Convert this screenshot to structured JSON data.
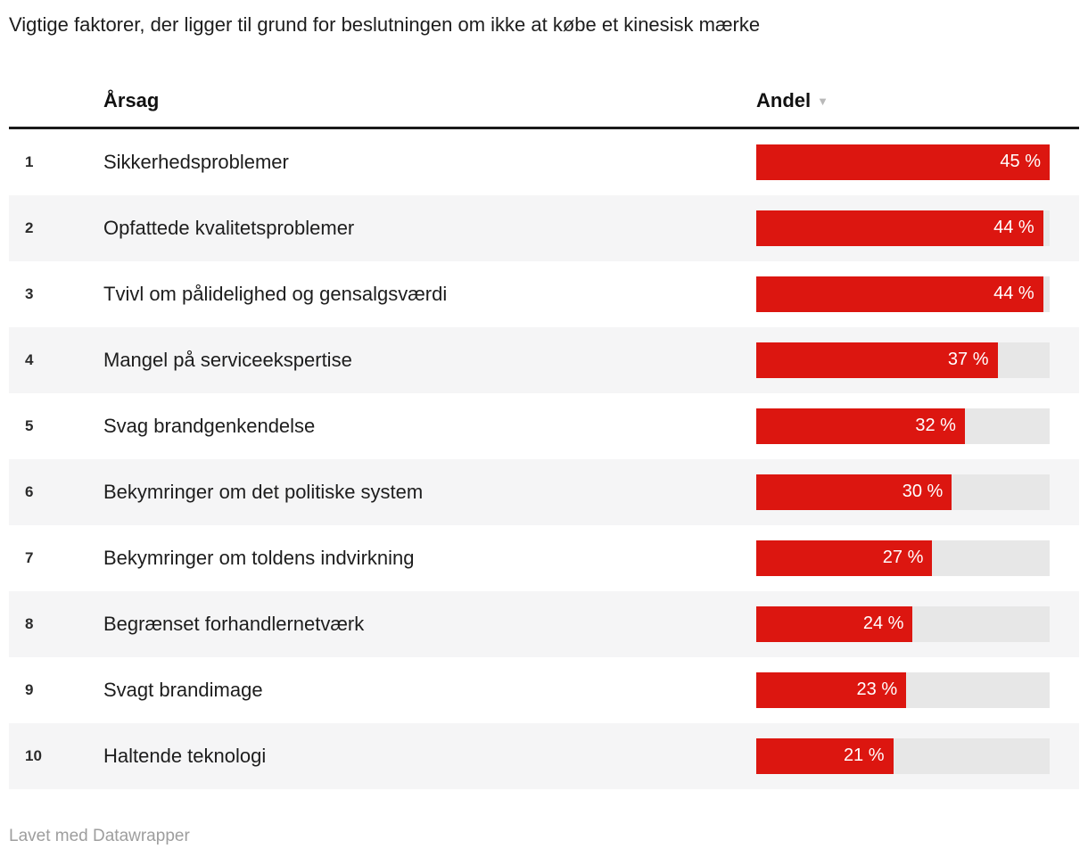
{
  "title": "Vigtige faktorer, der ligger til grund for beslutningen om ikke at købe et kinesisk mærke",
  "table": {
    "columns": {
      "reason": "Årsag",
      "share": "Andel"
    },
    "sort_icon": "▼",
    "rows": [
      {
        "rank": "1",
        "label": "Sikkerhedsproblemer",
        "value": 45,
        "display": "45 %"
      },
      {
        "rank": "2",
        "label": "Opfattede kvalitetsproblemer",
        "value": 44,
        "display": "44 %"
      },
      {
        "rank": "3",
        "label": "Tvivl om pålidelighed og gensalgsværdi",
        "value": 44,
        "display": "44 %"
      },
      {
        "rank": "4",
        "label": "Mangel på serviceekspertise",
        "value": 37,
        "display": "37 %"
      },
      {
        "rank": "5",
        "label": "Svag brandgenkendelse",
        "value": 32,
        "display": "32 %"
      },
      {
        "rank": "6",
        "label": "Bekymringer om det politiske system",
        "value": 30,
        "display": "30 %"
      },
      {
        "rank": "7",
        "label": "Bekymringer om toldens indvirkning",
        "value": 27,
        "display": "27 %"
      },
      {
        "rank": "8",
        "label": "Begrænset forhandlernetværk",
        "value": 24,
        "display": "24 %"
      },
      {
        "rank": "9",
        "label": "Svagt brandimage",
        "value": 23,
        "display": "23 %"
      },
      {
        "rank": "10",
        "label": "Haltende teknologi",
        "value": 21,
        "display": "21 %"
      }
    ]
  },
  "footer": {
    "credit": "Lavet med Datawrapper"
  },
  "colors": {
    "bar": "#dc1610",
    "track": "#e7e7e7",
    "row_alt": "#f5f5f6",
    "header_rule": "#1a1a1a",
    "sort_icon": "#b9b9b9",
    "value_text": "#ffffff",
    "footer_text": "#9e9e9e"
  },
  "chart_data": {
    "type": "bar",
    "orientation": "horizontal",
    "title": "Vigtige faktorer, der ligger til grund for beslutningen om ikke at købe et kinesisk mærke",
    "categories": [
      "Sikkerhedsproblemer",
      "Opfattede kvalitetsproblemer",
      "Tvivl om pålidelighed og gensalgsværdi",
      "Mangel på serviceekspertise",
      "Svag brandgenkendelse",
      "Bekymringer om det politiske system",
      "Bekymringer om toldens indvirkning",
      "Begrænset forhandlernetværk",
      "Svagt brandimage",
      "Haltende teknologi"
    ],
    "values": [
      45,
      44,
      44,
      37,
      32,
      30,
      27,
      24,
      23,
      21
    ],
    "value_suffix": " %",
    "xlabel": "Andel",
    "ylabel": "Årsag",
    "xlim": [
      0,
      45
    ],
    "sort": "descending",
    "grid": false,
    "legend": false
  }
}
